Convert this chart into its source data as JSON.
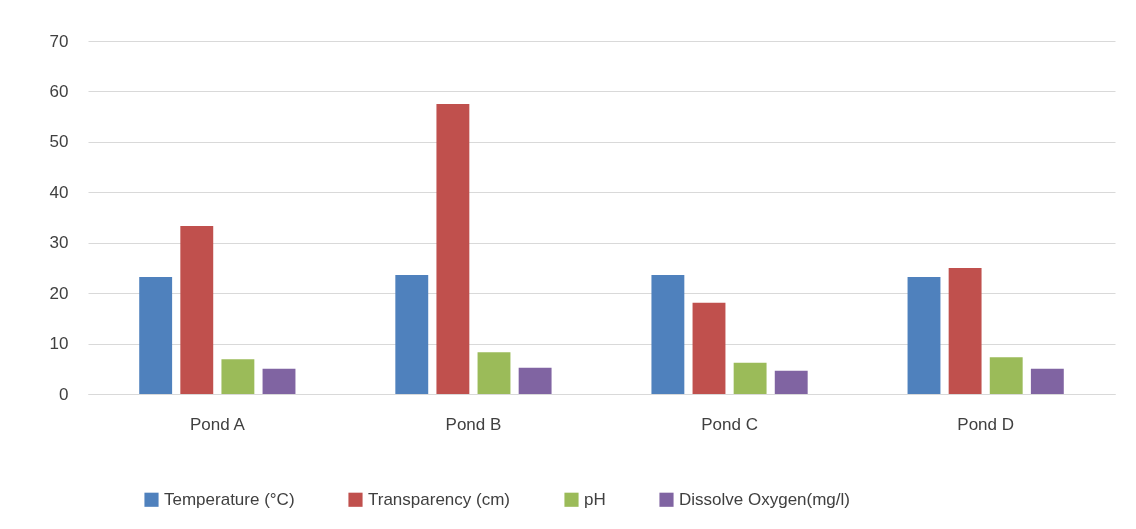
{
  "chart_data": {
    "type": "bar",
    "categories": [
      "Pond A",
      "Pond B",
      "Pond C",
      "Pond D"
    ],
    "series": [
      {
        "name": "Temperature (°C)",
        "color": "#4f81bd",
        "values": [
          23.2,
          23.6,
          23.6,
          23.2
        ]
      },
      {
        "name": "Transparency (cm)",
        "color": "#c0504d",
        "values": [
          33.3,
          57.5,
          18.1,
          25.0
        ]
      },
      {
        "name": "pH",
        "color": "#9bbb59",
        "values": [
          6.9,
          8.3,
          6.2,
          7.3
        ]
      },
      {
        "name": "Dissolve Oxygen(mg/l)",
        "color": "#8064a2",
        "values": [
          5.0,
          5.2,
          4.6,
          5.0
        ]
      }
    ],
    "ylim": [
      0,
      70
    ],
    "yticks": [
      0,
      10,
      20,
      30,
      40,
      50,
      60,
      70
    ],
    "grid": "y",
    "legend": "bottom"
  }
}
